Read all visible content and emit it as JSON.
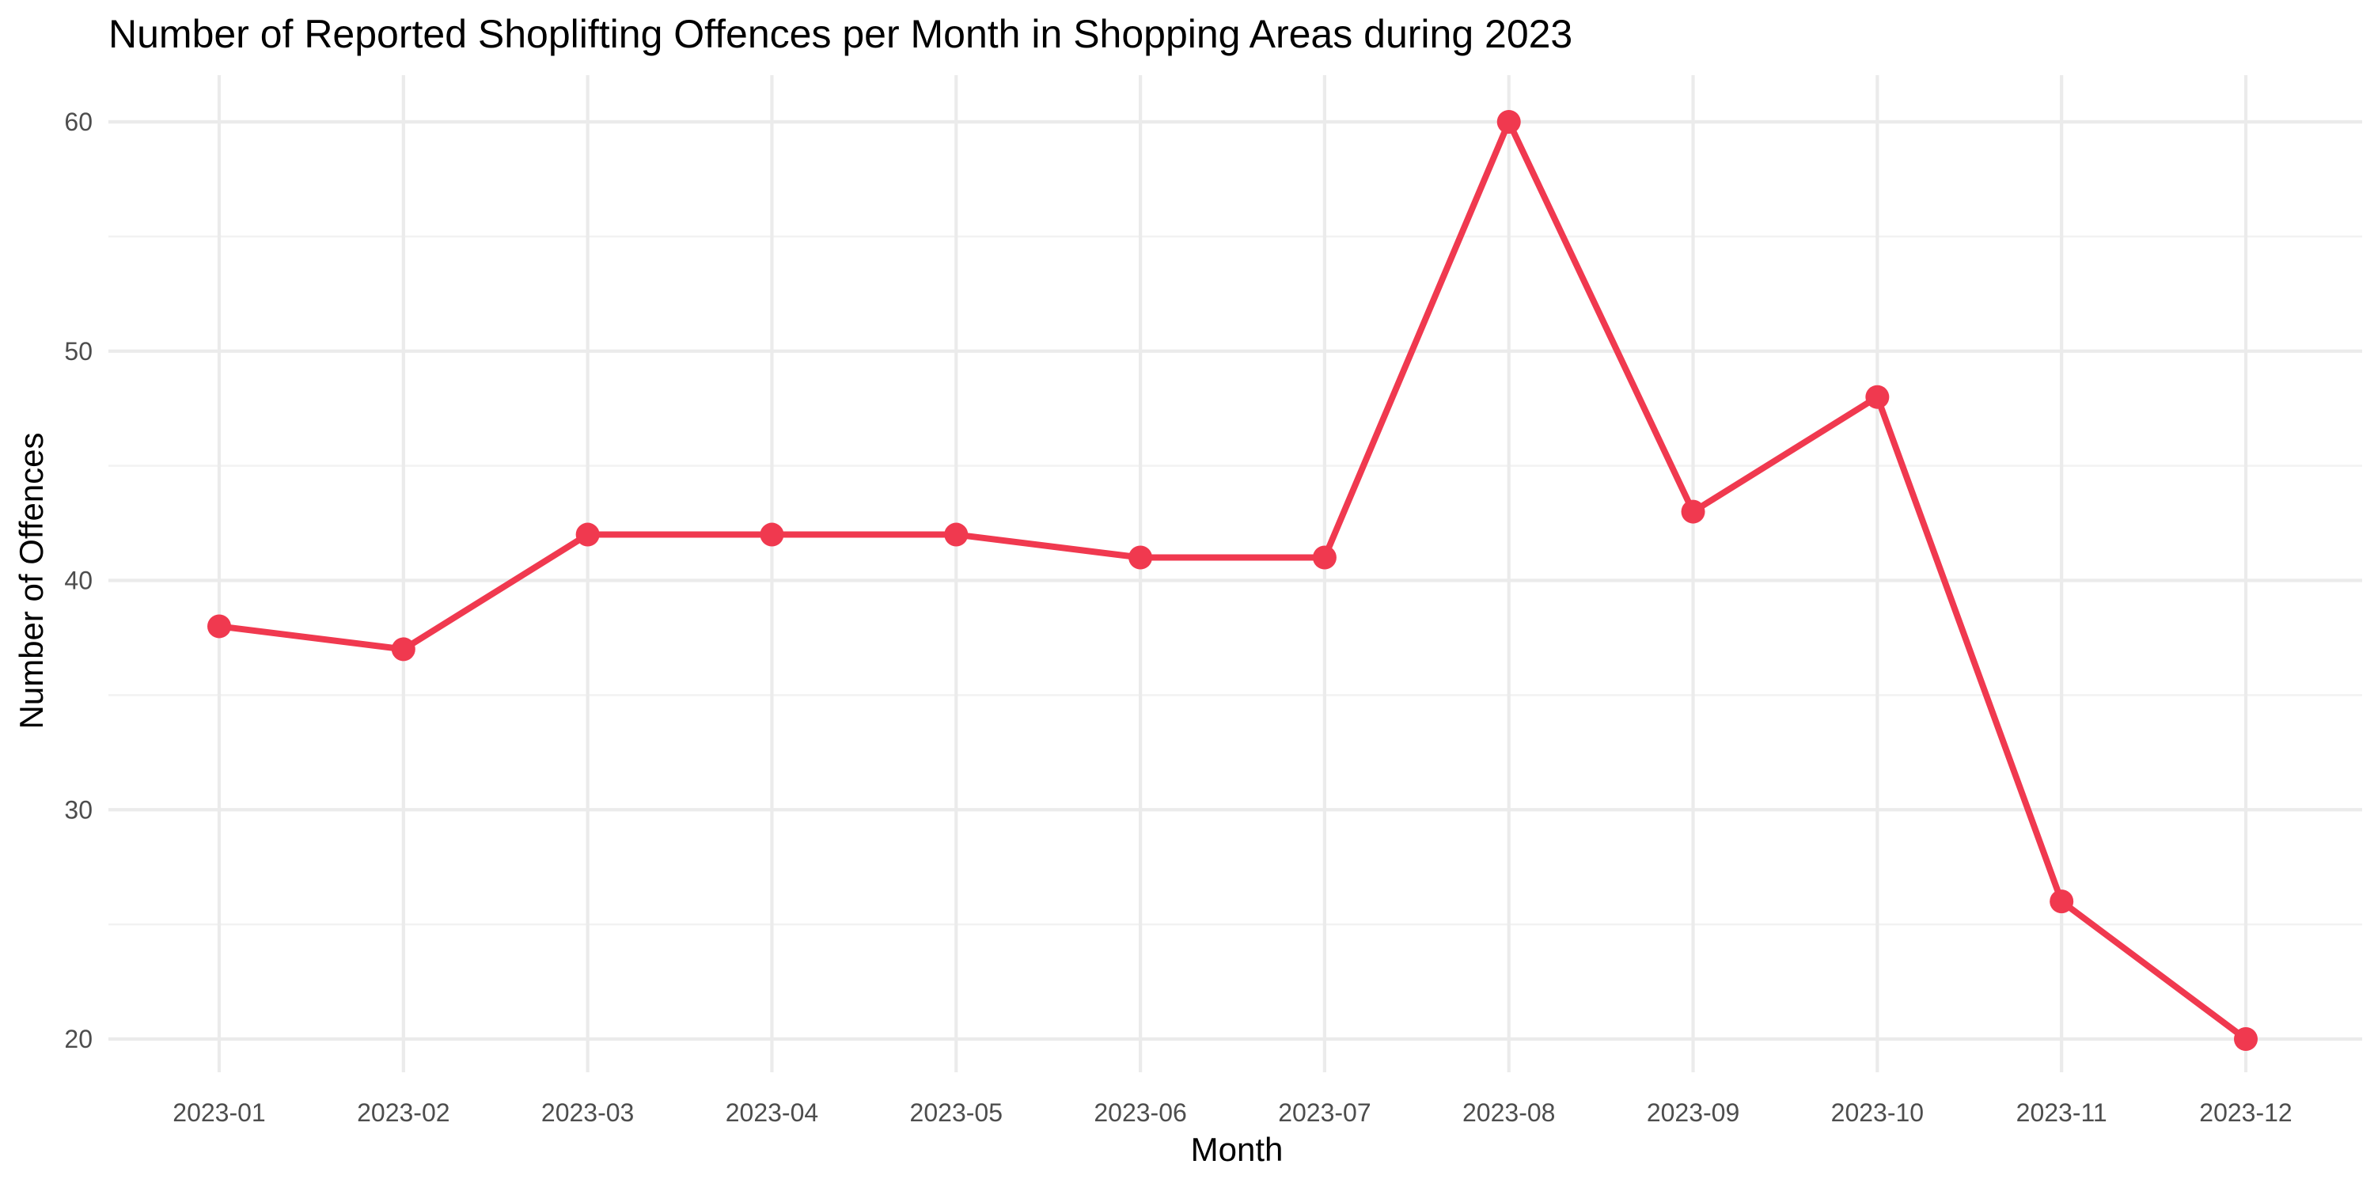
{
  "chart_data": {
    "type": "line",
    "title": "Number of Reported Shoplifting Offences per Month in Shopping Areas during 2023",
    "xlabel": "Month",
    "ylabel": "Number of Offences",
    "categories": [
      "2023-01",
      "2023-02",
      "2023-03",
      "2023-04",
      "2023-05",
      "2023-06",
      "2023-07",
      "2023-08",
      "2023-09",
      "2023-10",
      "2023-11",
      "2023-12"
    ],
    "series": [
      {
        "values": [
          38,
          37,
          42,
          42,
          42,
          41,
          41,
          60,
          43,
          48,
          26,
          20
        ]
      }
    ],
    "y_ticks": [
      20,
      30,
      40,
      50,
      60
    ],
    "ylim": [
      20,
      60
    ],
    "grid": true,
    "line_color": "#F0394F"
  }
}
